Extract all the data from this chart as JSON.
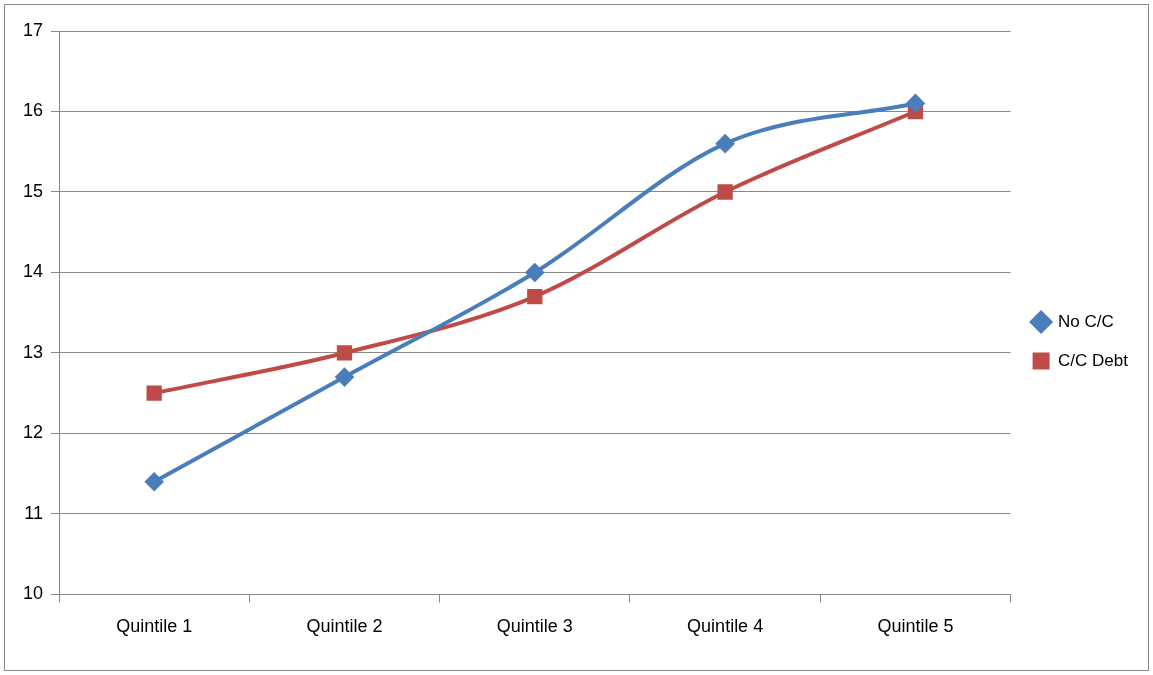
{
  "chart_data": {
    "type": "line",
    "categories": [
      "Quintile 1",
      "Quintile 2",
      "Quintile 3",
      "Quintile 4",
      "Quintile 5"
    ],
    "series": [
      {
        "name": "No C/C",
        "color": "#4a7ebb",
        "marker": "diamond",
        "values": [
          11.4,
          12.7,
          14.0,
          15.6,
          16.1
        ]
      },
      {
        "name": "C/C Debt",
        "color": "#be4b48",
        "marker": "square",
        "values": [
          12.5,
          13.0,
          13.7,
          15.0,
          16.0
        ]
      }
    ],
    "ylim": [
      10,
      17
    ],
    "yticks": [
      10,
      11,
      12,
      13,
      14,
      15,
      16,
      17
    ],
    "grid": "y",
    "legend": "right",
    "line_style": "solid"
  }
}
